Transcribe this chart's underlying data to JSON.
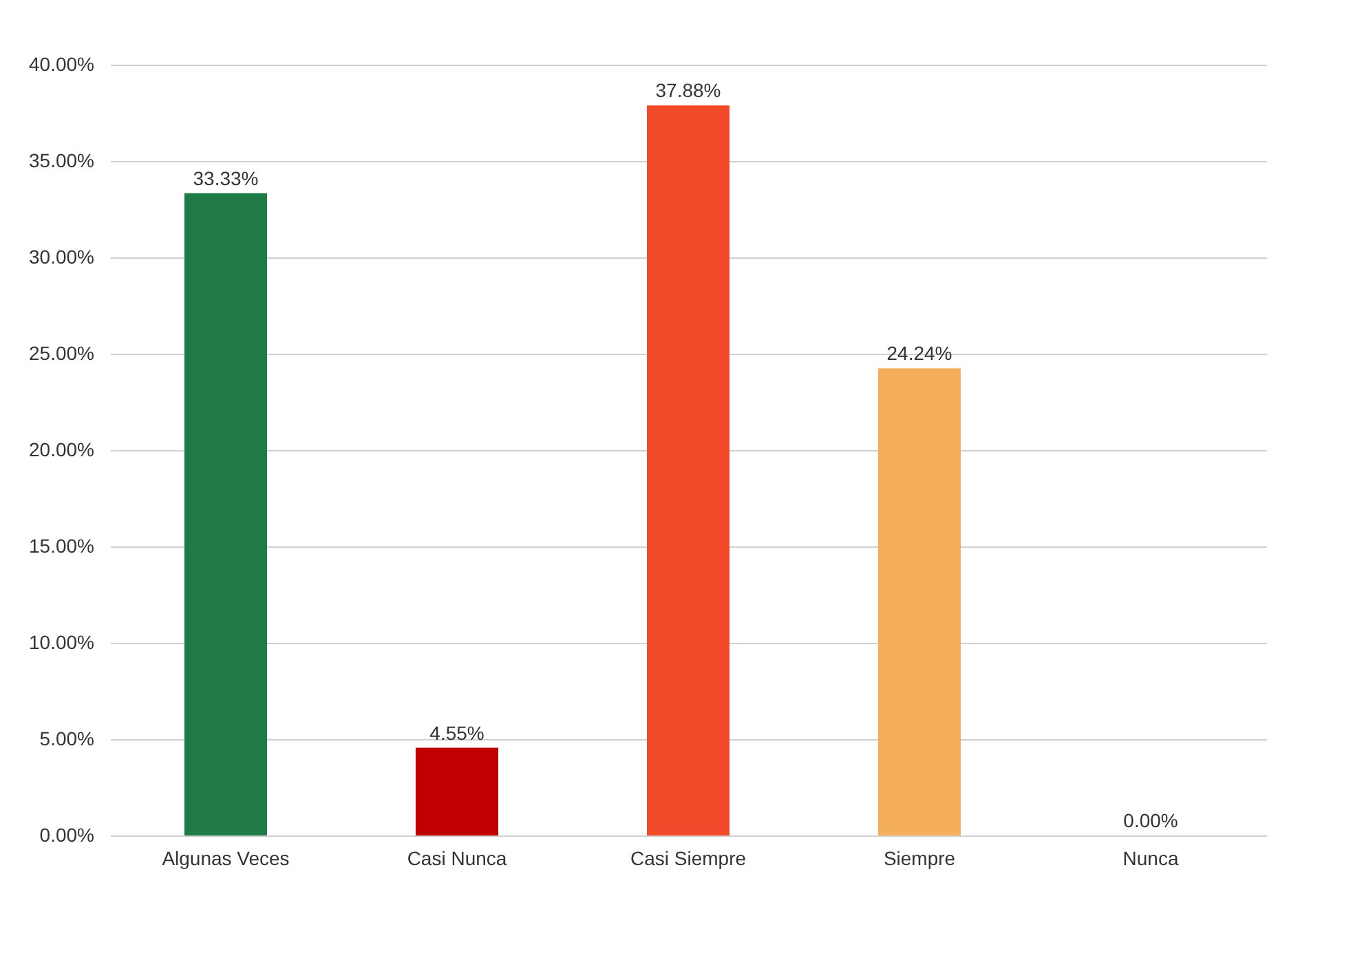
{
  "chart_data": {
    "type": "bar",
    "categories": [
      "Algunas Veces",
      "Casi Nunca",
      "Casi Siempre",
      "Siempre",
      "Nunca"
    ],
    "values": [
      33.33,
      4.55,
      37.88,
      24.24,
      0.0
    ],
    "colors": [
      "#1f7a45",
      "#c00000",
      "#f04a2a",
      "#f5ae5c",
      "#a07020"
    ],
    "value_labels": [
      "33.33%",
      "4.55%",
      "37.88%",
      "24.24%",
      "0.00%"
    ],
    "ylim": [
      0,
      40
    ],
    "yticks": [
      {
        "value": 0,
        "label": "0.00%"
      },
      {
        "value": 5,
        "label": "5.00%"
      },
      {
        "value": 10,
        "label": "10.00%"
      },
      {
        "value": 15,
        "label": "15.00%"
      },
      {
        "value": 20,
        "label": "20.00%"
      },
      {
        "value": 25,
        "label": "25.00%"
      },
      {
        "value": 30,
        "label": "30.00%"
      },
      {
        "value": 35,
        "label": "35.00%"
      },
      {
        "value": 40,
        "label": "40.00%"
      }
    ],
    "grid": "y"
  }
}
